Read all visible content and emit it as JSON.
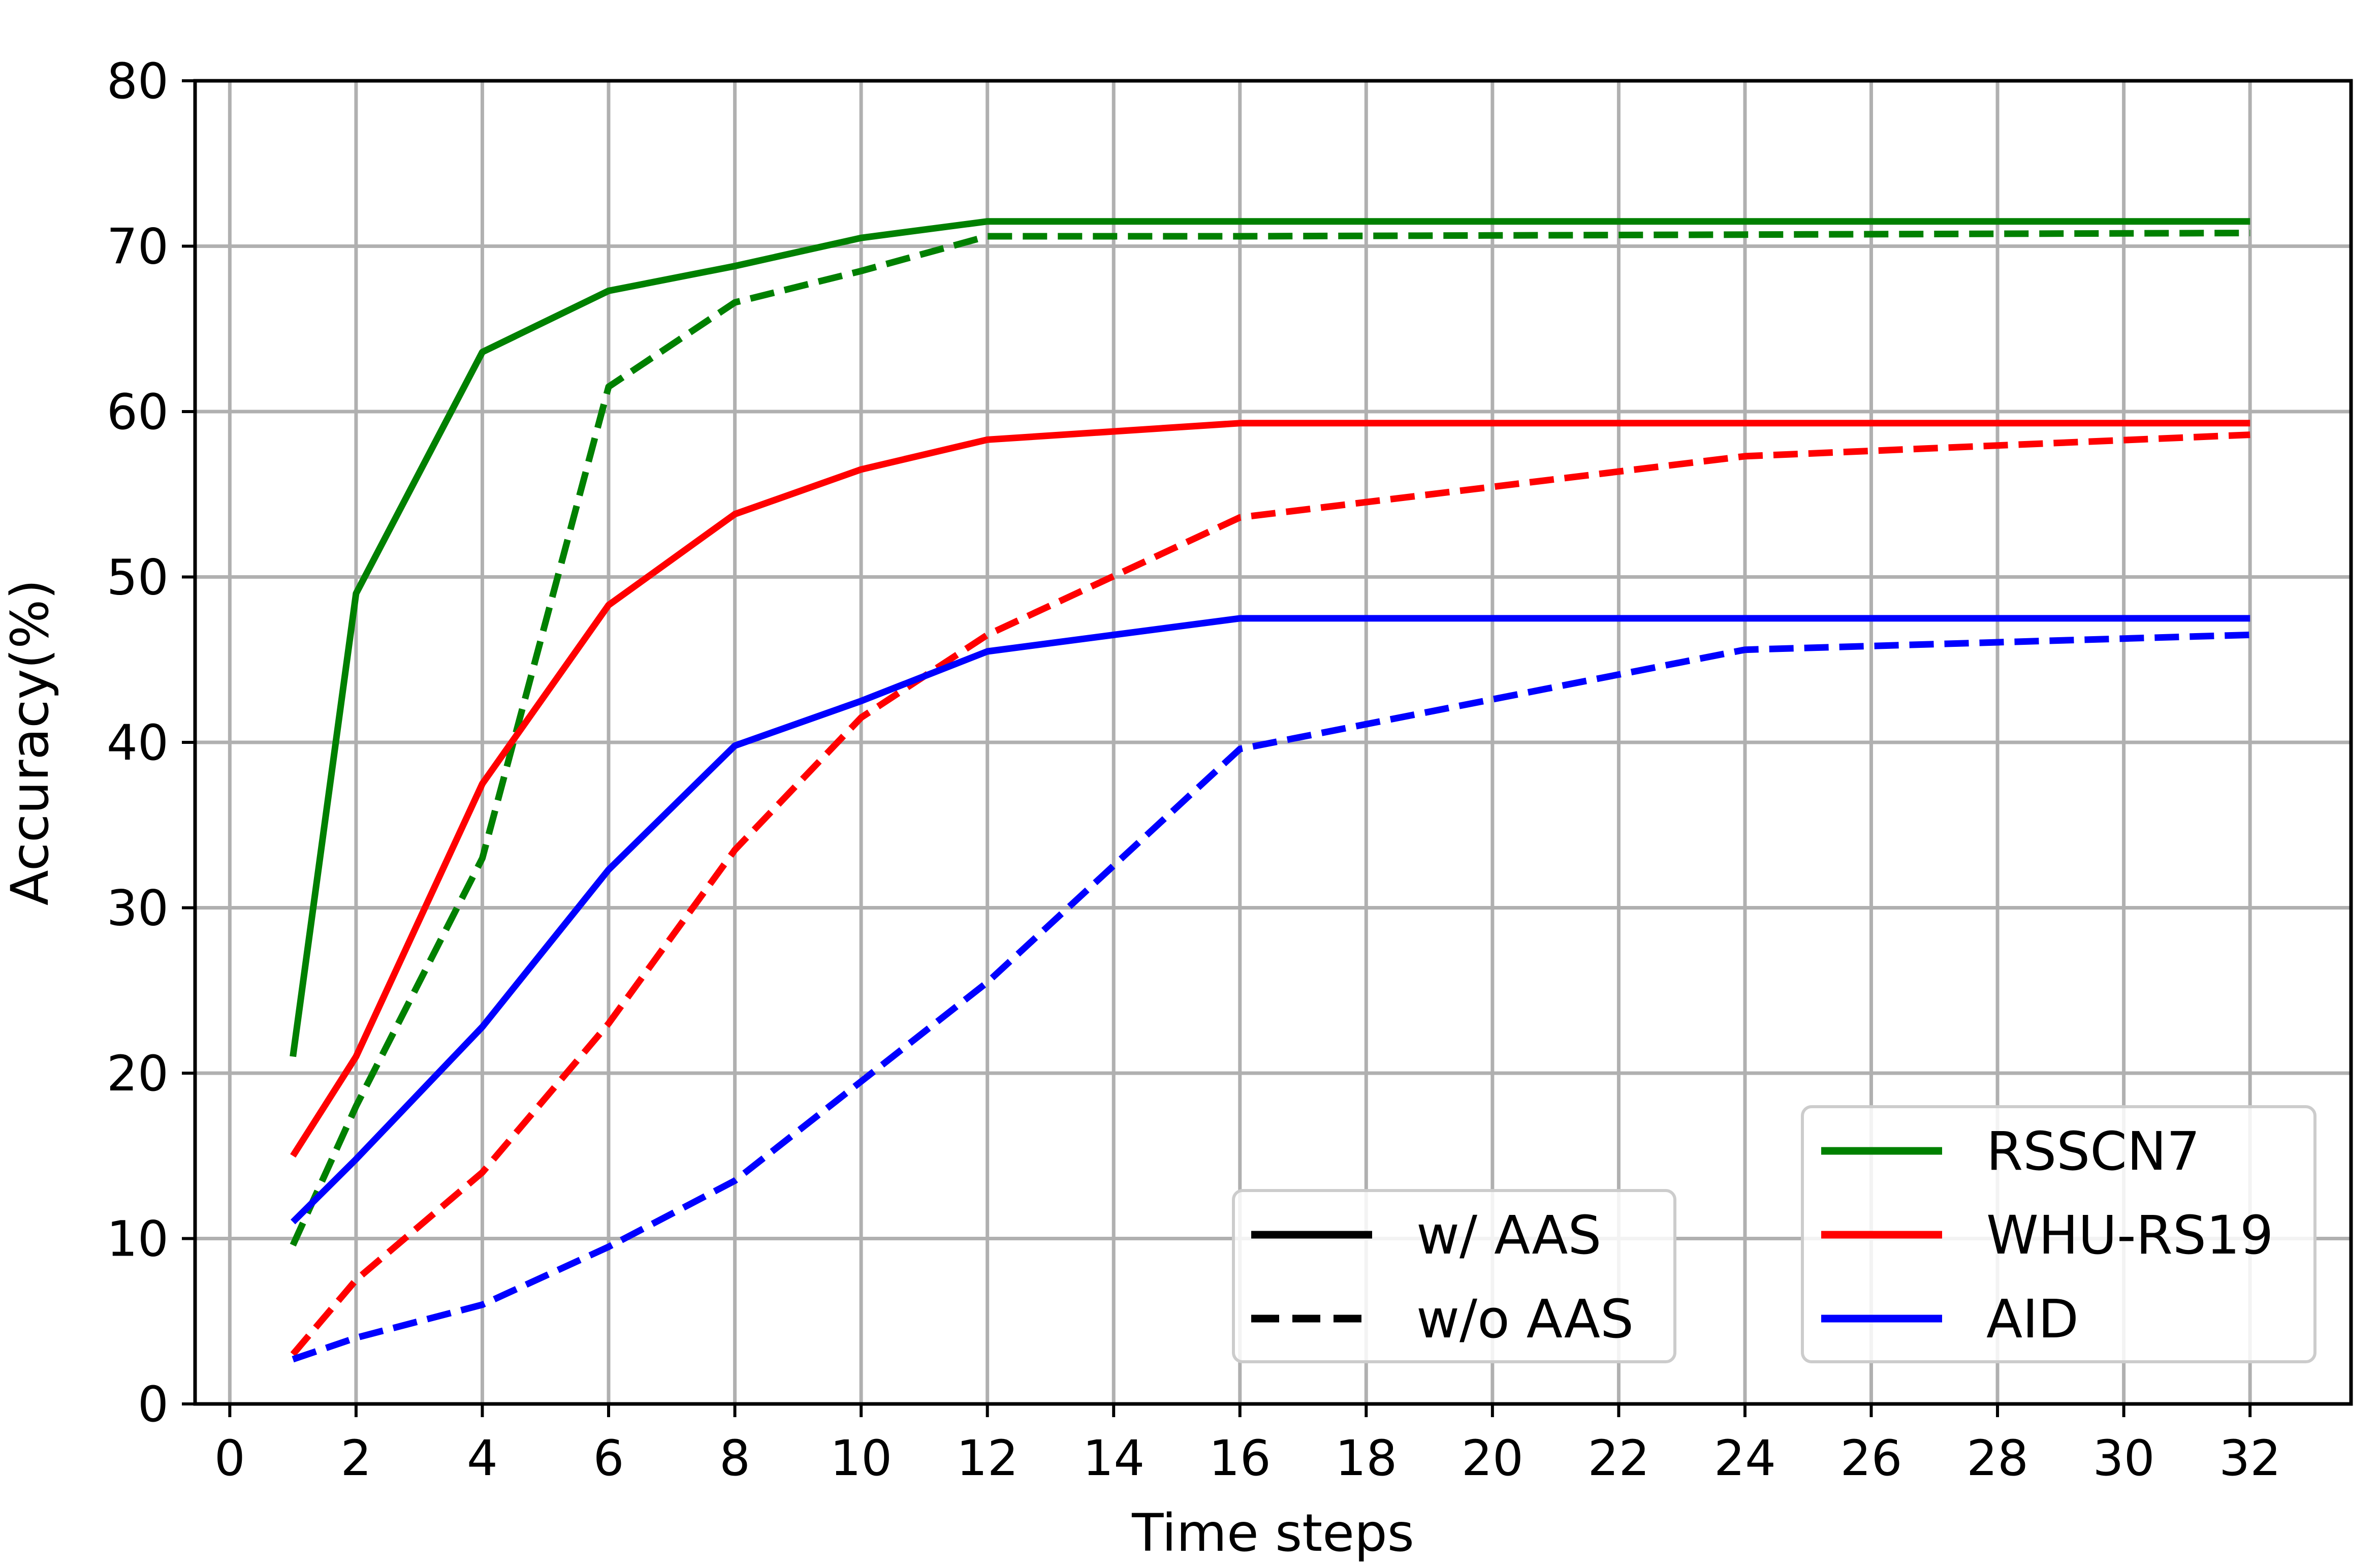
{
  "chart_data": {
    "type": "line",
    "title": "",
    "xlabel": "Time steps",
    "ylabel": "Accuracy(%)",
    "xlim": [
      -0.55,
      33.6
    ],
    "ylim": [
      0,
      80
    ],
    "xticks": [
      0,
      2,
      4,
      6,
      8,
      10,
      12,
      14,
      16,
      18,
      20,
      22,
      24,
      26,
      28,
      30,
      32
    ],
    "yticks": [
      0,
      10,
      20,
      30,
      40,
      50,
      60,
      70,
      80
    ],
    "grid": true,
    "series": [
      {
        "name": "RSSCN7",
        "aas": "w/ AAS",
        "color": "#008000",
        "dashed": false,
        "x": [
          1,
          2,
          4,
          6,
          8,
          10,
          12,
          16,
          24,
          32
        ],
        "y": [
          21.0,
          49.0,
          63.6,
          67.3,
          68.8,
          70.5,
          71.5,
          71.5,
          71.5,
          71.5
        ]
      },
      {
        "name": "RSSCN7",
        "aas": "w/o AAS",
        "color": "#008000",
        "dashed": true,
        "x": [
          1,
          2,
          4,
          6,
          8,
          10,
          12,
          16,
          24,
          32
        ],
        "y": [
          9.6,
          18.0,
          33.0,
          61.5,
          66.6,
          68.5,
          70.6,
          70.6,
          70.7,
          70.8
        ]
      },
      {
        "name": "WHU-RS19",
        "aas": "w/ AAS",
        "color": "#ff0000",
        "dashed": false,
        "x": [
          1,
          2,
          4,
          6,
          8,
          10,
          12,
          16,
          24,
          32
        ],
        "y": [
          15.0,
          21.0,
          37.5,
          48.3,
          53.8,
          56.5,
          58.3,
          59.3,
          59.3,
          59.3
        ]
      },
      {
        "name": "WHU-RS19",
        "aas": "w/o AAS",
        "color": "#ff0000",
        "dashed": true,
        "x": [
          1,
          2,
          4,
          6,
          8,
          10,
          12,
          16,
          24,
          32
        ],
        "y": [
          3.0,
          7.5,
          14.0,
          23.0,
          33.5,
          41.5,
          46.5,
          53.6,
          57.3,
          58.6
        ]
      },
      {
        "name": "AID",
        "aas": "w/ AAS",
        "color": "#0000ff",
        "dashed": false,
        "x": [
          1,
          2,
          4,
          6,
          8,
          10,
          12,
          16,
          24,
          32
        ],
        "y": [
          11.0,
          14.8,
          22.8,
          32.3,
          39.8,
          42.5,
          45.5,
          47.5,
          47.5,
          47.5
        ]
      },
      {
        "name": "AID",
        "aas": "w/o AAS",
        "color": "#0000ff",
        "dashed": true,
        "x": [
          1,
          2,
          4,
          6,
          8,
          10,
          12,
          16,
          24,
          32
        ],
        "y": [
          2.7,
          4.0,
          6.0,
          9.5,
          13.5,
          19.5,
          25.5,
          39.6,
          45.6,
          46.5
        ]
      }
    ],
    "legends": [
      {
        "placement": "lower-center",
        "entries": [
          {
            "label": "w/ AAS",
            "color": "#000000",
            "dashed": false
          },
          {
            "label": "w/o AAS",
            "color": "#000000",
            "dashed": true
          }
        ]
      },
      {
        "placement": "lower-right",
        "entries": [
          {
            "label": "RSSCN7",
            "color": "#008000",
            "dashed": false
          },
          {
            "label": "WHU-RS19",
            "color": "#ff0000",
            "dashed": false
          },
          {
            "label": "AID",
            "color": "#0000ff",
            "dashed": false
          }
        ]
      }
    ]
  }
}
